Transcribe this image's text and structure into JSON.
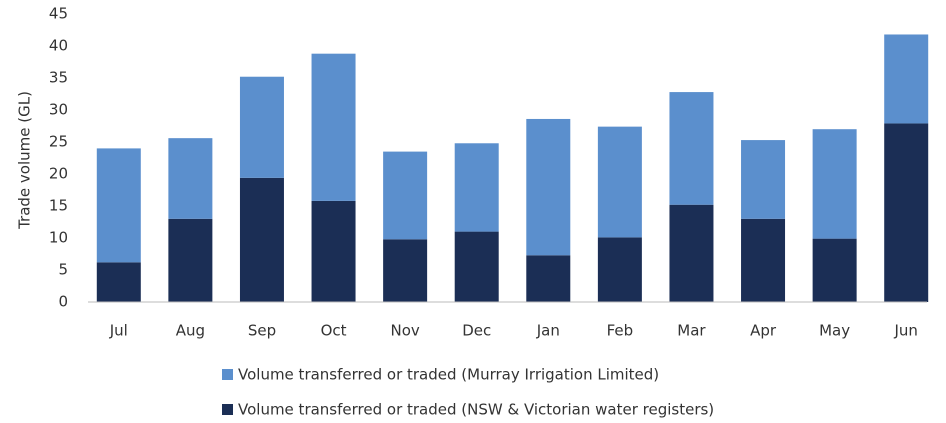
{
  "chart_data": {
    "type": "stacked_bar",
    "y_label": "Trade volume (GL)",
    "categories": [
      "Jul",
      "Aug",
      "Sep",
      "Oct",
      "Nov",
      "Dec",
      "Jan",
      "Feb",
      "Mar",
      "Apr",
      "May",
      "Jun"
    ],
    "series": [
      {
        "name": "Volume transferred or traded (NSW & Victorian water registers)",
        "color": "#1b2e55",
        "values": [
          6.2,
          13,
          19.4,
          15.8,
          9.8,
          11,
          7.3,
          10.1,
          15.2,
          13,
          9.9,
          27.9
        ]
      },
      {
        "name": "Volume transferred or traded (Murray Irrigation Limited)",
        "color": "#5b8fcd",
        "values": [
          17.8,
          12.6,
          15.8,
          23,
          13.7,
          13.8,
          21.3,
          17.3,
          17.6,
          12.3,
          17.1,
          13.9
        ]
      }
    ],
    "ylim": [
      0,
      45
    ],
    "yticks": [
      0,
      5,
      10,
      15,
      20,
      25,
      30,
      35,
      40,
      45
    ],
    "grid": false
  }
}
